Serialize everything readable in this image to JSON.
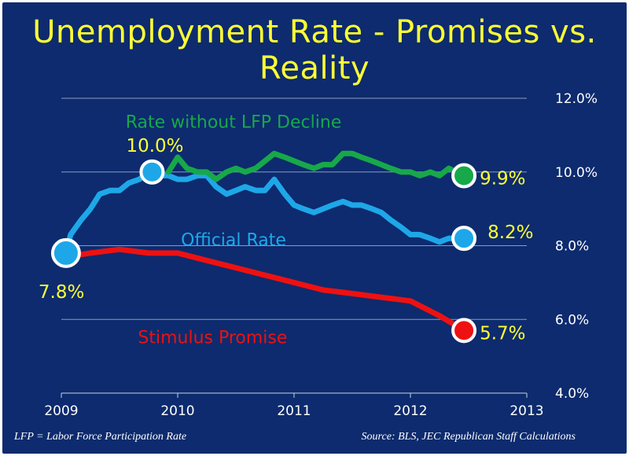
{
  "title": "Unemployment Rate - Promises vs. Reality",
  "footnote_left": "LFP = Labor Force Participation Rate",
  "footnote_right": "Source:  BLS, JEC Republican Staff Calculations",
  "colors": {
    "background": "#0d2b6e",
    "title": "#ffff33",
    "official": "#1ea7e8",
    "lfp": "#17a84a",
    "promise": "#ee1111",
    "callout": "#ffff33",
    "axis_text": "#ffffff"
  },
  "chart_data": {
    "type": "line",
    "title": "Unemployment Rate - Promises vs. Reality",
    "xlim": [
      2009,
      2013
    ],
    "ylim": [
      4.0,
      12.0
    ],
    "x_ticks": [
      "2009",
      "2010",
      "2011",
      "2012",
      "2013"
    ],
    "y_ticks": [
      "4.0%",
      "6.0%",
      "8.0%",
      "10.0%",
      "12.0%"
    ],
    "grid": "horizontal",
    "series": [
      {
        "name": "Official Rate",
        "color": "#1ea7e8",
        "x": [
          2009.04,
          2009.08,
          2009.17,
          2009.25,
          2009.33,
          2009.42,
          2009.5,
          2009.58,
          2009.67,
          2009.75,
          2009.83,
          2009.92,
          2010.0,
          2010.08,
          2010.17,
          2010.25,
          2010.33,
          2010.42,
          2010.5,
          2010.58,
          2010.67,
          2010.75,
          2010.83,
          2010.92,
          2011.0,
          2011.08,
          2011.17,
          2011.25,
          2011.33,
          2011.42,
          2011.5,
          2011.58,
          2011.67,
          2011.75,
          2011.83,
          2011.92,
          2012.0,
          2012.08,
          2012.17,
          2012.25,
          2012.33,
          2012.46
        ],
        "y": [
          7.8,
          8.3,
          8.7,
          9.0,
          9.4,
          9.5,
          9.5,
          9.7,
          9.8,
          10.0,
          9.9,
          9.9,
          9.8,
          9.8,
          9.9,
          9.9,
          9.6,
          9.4,
          9.5,
          9.6,
          9.5,
          9.5,
          9.8,
          9.4,
          9.1,
          9.0,
          8.9,
          9.0,
          9.1,
          9.2,
          9.1,
          9.1,
          9.0,
          8.9,
          8.7,
          8.5,
          8.3,
          8.3,
          8.2,
          8.1,
          8.2,
          8.2
        ]
      },
      {
        "name": "Rate without LFP Decline",
        "color": "#17a84a",
        "x": [
          2009.92,
          2010.0,
          2010.08,
          2010.17,
          2010.25,
          2010.33,
          2010.42,
          2010.5,
          2010.58,
          2010.67,
          2010.75,
          2010.83,
          2010.92,
          2011.0,
          2011.08,
          2011.17,
          2011.25,
          2011.33,
          2011.42,
          2011.5,
          2011.58,
          2011.67,
          2011.75,
          2011.83,
          2011.92,
          2012.0,
          2012.08,
          2012.17,
          2012.25,
          2012.33,
          2012.46
        ],
        "y": [
          10.0,
          10.4,
          10.1,
          10.0,
          10.0,
          9.8,
          10.0,
          10.1,
          10.0,
          10.1,
          10.3,
          10.5,
          10.4,
          10.3,
          10.2,
          10.1,
          10.2,
          10.2,
          10.5,
          10.5,
          10.4,
          10.3,
          10.2,
          10.1,
          10.0,
          10.0,
          9.9,
          10.0,
          9.9,
          10.1,
          9.9
        ]
      },
      {
        "name": "Stimulus Promise",
        "color": "#ee1111",
        "x": [
          2009.04,
          2009.25,
          2009.5,
          2009.75,
          2010.0,
          2010.25,
          2010.5,
          2010.75,
          2011.0,
          2011.25,
          2011.5,
          2011.75,
          2012.0,
          2012.25,
          2012.46
        ],
        "y": [
          7.7,
          7.8,
          7.9,
          7.8,
          7.8,
          7.6,
          7.4,
          7.2,
          7.0,
          6.8,
          6.7,
          6.6,
          6.5,
          6.1,
          5.7
        ]
      }
    ],
    "markers": [
      {
        "series": "Official Rate",
        "x": 2009.04,
        "y": 7.8,
        "fill": "#1ea7e8",
        "r": 17
      },
      {
        "series": "Official Rate",
        "x": 2009.78,
        "y": 10.0,
        "fill": "#1ea7e8",
        "r": 14
      },
      {
        "series": "Official Rate",
        "x": 2012.46,
        "y": 8.2,
        "fill": "#1ea7e8",
        "r": 14
      },
      {
        "series": "Rate without LFP Decline",
        "x": 2012.46,
        "y": 9.9,
        "fill": "#17a84a",
        "r": 14
      },
      {
        "series": "Stimulus Promise",
        "x": 2012.46,
        "y": 5.7,
        "fill": "#ee1111",
        "r": 14
      }
    ],
    "callouts": [
      {
        "text": "7.8%",
        "anchor_x": 2009.04,
        "anchor_y": 7.8,
        "pos": "below-left",
        "color": "#ffff33"
      },
      {
        "text": "10.0%",
        "anchor_x": 2009.78,
        "anchor_y": 10.0,
        "pos": "above-left",
        "color": "#ffff33"
      },
      {
        "text": "9.9%",
        "anchor_x": 2012.46,
        "anchor_y": 9.9,
        "pos": "right",
        "color": "#ffff33"
      },
      {
        "text": "8.2%",
        "anchor_x": 2012.46,
        "anchor_y": 8.2,
        "pos": "right-up",
        "color": "#ffff33"
      },
      {
        "text": "5.7%",
        "anchor_x": 2012.46,
        "anchor_y": 5.7,
        "pos": "right",
        "color": "#ffff33"
      }
    ],
    "series_labels": [
      {
        "text": "Rate without LFP Decline",
        "x": 2010.48,
        "y": 11.2,
        "color": "#17a84a"
      },
      {
        "text": "Official Rate",
        "x": 2010.48,
        "y": 8.0,
        "color": "#1ea7e8"
      },
      {
        "text": "Stimulus Promise",
        "x": 2010.3,
        "y": 5.35,
        "color": "#ee1111"
      }
    ]
  }
}
